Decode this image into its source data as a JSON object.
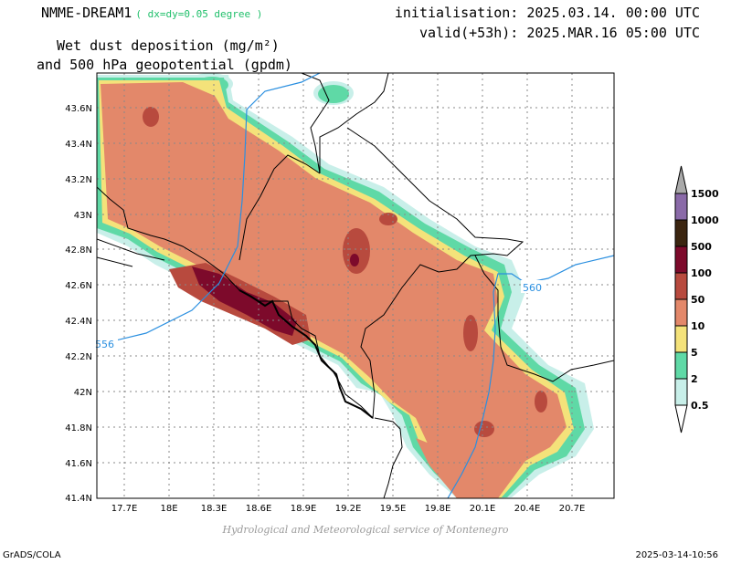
{
  "header": {
    "model": "NMME-DREAM1",
    "resolution": "( dx=dy=0.05 degree )",
    "init": "initialisation: 2025.03.14. 00:00 UTC",
    "valid": "valid(+53h): 2025.MAR.16 05:00 UTC",
    "field_line1": "Wet dust deposition (mg/m²)",
    "field_line2": "and 500 hPa geopotential (gpdm)"
  },
  "map": {
    "lat_labels": [
      "43.6N",
      "43.4N",
      "43.2N",
      "43N",
      "42.8N",
      "42.6N",
      "42.4N",
      "42.2N",
      "42N",
      "41.8N",
      "41.6N",
      "41.4N"
    ],
    "lon_labels": [
      "17.7E",
      "18E",
      "18.3E",
      "18.6E",
      "18.9E",
      "19.2E",
      "19.5E",
      "19.8E",
      "20.1E",
      "20.4E",
      "20.7E"
    ],
    "contour_labels": [
      "556",
      "560"
    ],
    "contour_color": "#2a8fe0"
  },
  "legend": {
    "levels": [
      "1500",
      "1000",
      "500",
      "100",
      "50",
      "10",
      "5",
      "2",
      "0.5"
    ],
    "colors": [
      "#a9a9a9",
      "#8a6aa8",
      "#3b2510",
      "#7d0a2b",
      "#b84a3e",
      "#e3886a",
      "#f4e27a",
      "#5fd9a6",
      "#c8efe9"
    ]
  },
  "footer": {
    "credit": "Hydrological and Meteorological service of Montenegro",
    "software": "GrADS/COLA",
    "timestamp": "2025-03-14-10:56"
  }
}
